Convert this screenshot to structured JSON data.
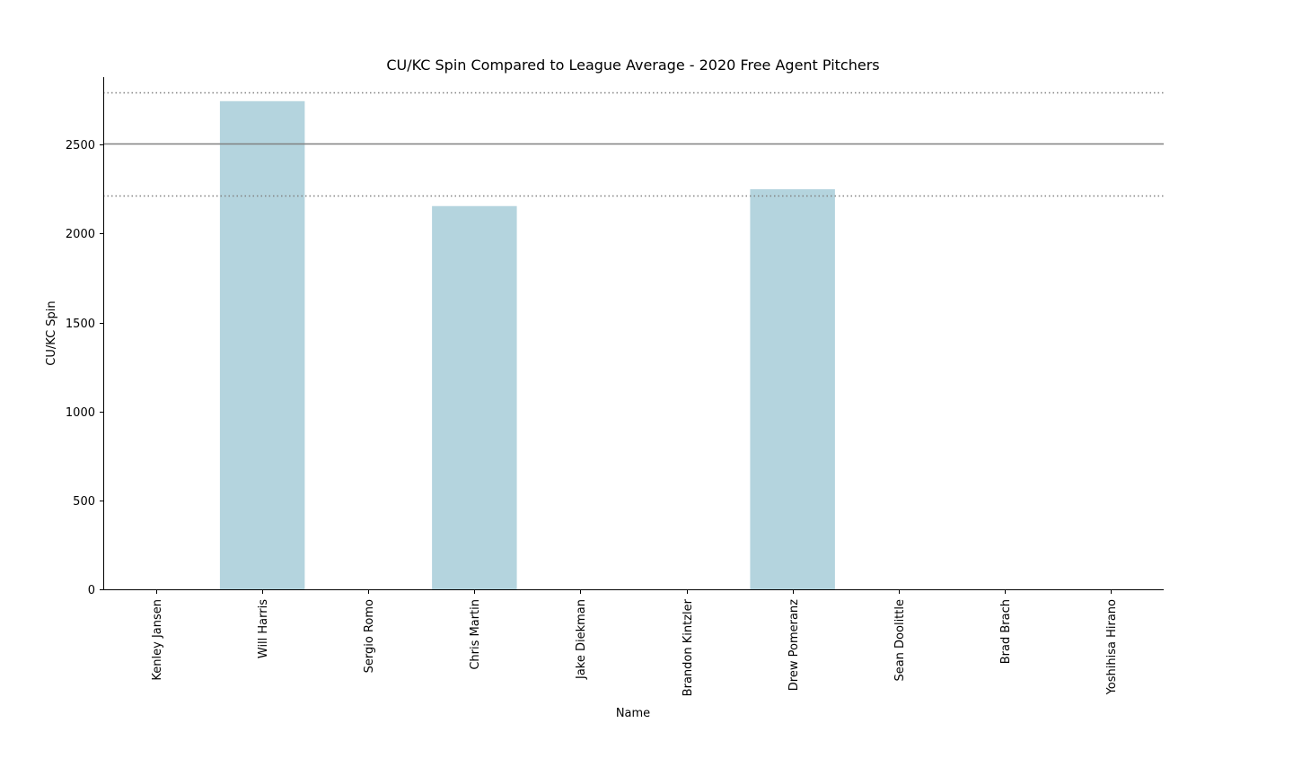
{
  "chart_data": {
    "type": "bar",
    "title": "CU/KC Spin Compared to League Average - 2020 Free Agent Pitchers",
    "xlabel": "Name",
    "ylabel": "CU/KC Spin",
    "ylim": [
      0,
      2880
    ],
    "yticks": [
      0,
      500,
      1000,
      1500,
      2000,
      2500
    ],
    "categories": [
      "Kenley Jansen",
      "Will Harris",
      "Sergio Romo",
      "Chris Martin",
      "Jake Diekman",
      "Brandon Kintzler",
      "Drew Pomeranz",
      "Sean Doolittle",
      "Brad Brach",
      "Yoshihisa Hirano"
    ],
    "values": [
      0,
      2745,
      0,
      2155,
      0,
      0,
      2250,
      0,
      0,
      0
    ],
    "reference_lines": [
      {
        "value": 2505,
        "style": "solid"
      },
      {
        "value": 2795,
        "style": "dotted"
      },
      {
        "value": 2215,
        "style": "dotted"
      }
    ],
    "bar_color": "#b4d4de",
    "reference_line_color": "#808080",
    "grid": false,
    "legend": "none"
  }
}
